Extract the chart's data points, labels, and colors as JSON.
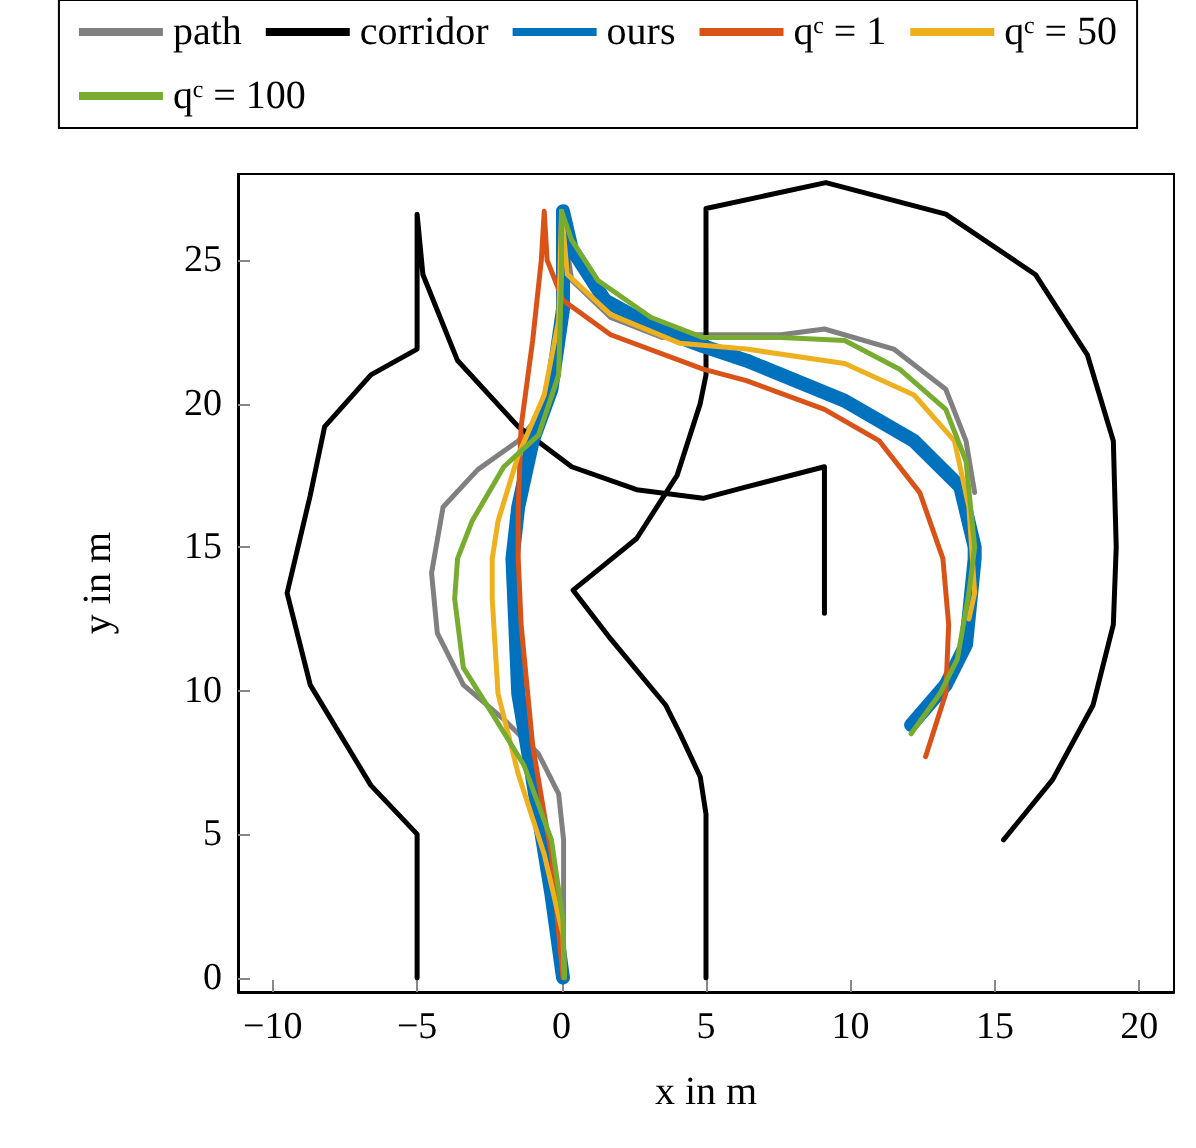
{
  "chart_data": {
    "type": "line",
    "xlabel": "x in m",
    "ylabel": "y in m",
    "xlim": [
      -11.2,
      21.2
    ],
    "ylim": [
      -0.5,
      28
    ],
    "xticks": [
      -10,
      -5,
      0,
      5,
      10,
      15,
      20
    ],
    "yticks": [
      0,
      5,
      10,
      15,
      20,
      25
    ],
    "grid": false,
    "legend": "top",
    "marker": "none",
    "line_style": "solid",
    "series": [
      {
        "name": "path",
        "color": "#808080",
        "x": [
          0.07,
          0.07,
          -0.1,
          -0.8,
          -2,
          -3.4,
          -4.3,
          -4.5,
          -4.1,
          -2.9,
          -1.5,
          -0.35,
          0,
          0,
          0,
          0.35,
          1.7,
          3.5,
          4.1,
          7.6,
          9.1,
          11.5,
          13.3,
          14,
          14.3
        ],
        "values": [
          0,
          4.8,
          6.4,
          7.8,
          9,
          10.2,
          12,
          14.1,
          16.4,
          17.7,
          18.7,
          20.1,
          22.2,
          25.7,
          26.7,
          24.3,
          23,
          22.3,
          22.4,
          22.4,
          22.6,
          21.9,
          20.5,
          18.7,
          16.9
        ]
      },
      {
        "name": "corridor",
        "color": "#000000",
        "x": [
          -5,
          -5,
          -6.6,
          -8.7,
          -9.5,
          -8.7,
          -8.2,
          -6.6,
          -5,
          -5,
          -4.8,
          -3.6,
          -1.5,
          0.35,
          2.6,
          4.9,
          6.4,
          9.1,
          9.1,
          null,
          5,
          5,
          4.8,
          4.1,
          3.6,
          1.7,
          0.4,
          1.5,
          2.6,
          4,
          4.8,
          5,
          5,
          9.15,
          13.3,
          16.4,
          18.2,
          19.1,
          19.2,
          19.1,
          18.4,
          17,
          15.3
        ],
        "values": [
          0,
          5,
          6.7,
          10.2,
          13.4,
          16.8,
          19.2,
          21,
          21.9,
          26.6,
          24.5,
          21.5,
          19.2,
          17.8,
          17,
          16.7,
          17.1,
          17.8,
          12.7,
          null,
          0,
          5.7,
          7,
          8.5,
          9.5,
          11.8,
          13.5,
          14.4,
          15.3,
          17.5,
          20,
          21,
          26.8,
          27.7,
          26.6,
          24.5,
          21.7,
          18.7,
          15,
          12.3,
          9.5,
          6.9,
          4.8
        ]
      },
      {
        "name": "ours",
        "color": "#0072bd",
        "x": [
          0.05,
          -0.35,
          -1,
          -1.5,
          -1.7,
          -1.5,
          -1,
          -0.35,
          0.05,
          0.05,
          0.35,
          1.5,
          3.3,
          4.9,
          6.4,
          9.8,
          12.2,
          13.8,
          14.3,
          14.3,
          14,
          13.3,
          12.1
        ],
        "values": [
          0,
          2.9,
          6.9,
          9.9,
          14.6,
          16.4,
          18.7,
          20.5,
          23.3,
          26.7,
          25.4,
          23.6,
          22.6,
          22,
          21.5,
          20.1,
          18.7,
          17.1,
          15,
          14.6,
          11.6,
          10.2,
          8.8
        ]
      },
      {
        "name": "qᶜ = 1",
        "color": "#d95319",
        "x": [
          0.05,
          -0.35,
          -0.6,
          -1,
          -1.4,
          -1.5,
          -1.5,
          -1.4,
          -1,
          -0.7,
          -0.6,
          -0.5,
          0.05,
          1.7,
          4.9,
          6.4,
          9.1,
          11,
          12.4,
          13.2,
          13.4,
          13.3,
          12.6
        ],
        "values": [
          0,
          4.3,
          5.7,
          8.1,
          12.3,
          14.6,
          16.4,
          19.2,
          22.2,
          25,
          26.7,
          25,
          23.6,
          22.4,
          21.2,
          20.8,
          19.8,
          18.7,
          16.9,
          14.6,
          12.3,
          9.9,
          7.7
        ]
      },
      {
        "name": "qᶜ = 50",
        "color": "#edb120",
        "x": [
          0.1,
          0.05,
          -0.6,
          -1.5,
          -2.2,
          -2.4,
          -2.4,
          -2.2,
          -1.5,
          -0.6,
          -0.1,
          0,
          0.2,
          1.7,
          4.1,
          6.4,
          9.8,
          12.2,
          13.6,
          14.1,
          14.3,
          14.1
        ],
        "values": [
          0,
          1.5,
          4.3,
          7.1,
          9.9,
          13.2,
          14.6,
          15.9,
          18.2,
          20.3,
          22.9,
          26.7,
          24.5,
          23.1,
          22.1,
          21.9,
          21.4,
          20.3,
          18.7,
          16.4,
          13.4,
          12.5
        ]
      },
      {
        "name": "qᶜ = 100",
        "color": "#77ac30",
        "x": [
          0.1,
          0.05,
          -0.35,
          -1.3,
          -2.4,
          -3.4,
          -3.7,
          -3.6,
          -3.1,
          -2,
          -0.8,
          -0.1,
          0,
          0,
          0.35,
          1.25,
          3.1,
          4.9,
          7.6,
          9.8,
          11.7,
          13.3,
          14,
          14.3,
          14.1,
          13.7,
          13.1,
          12.1
        ],
        "values": [
          0,
          2,
          4.8,
          7.4,
          9.2,
          10.8,
          13.2,
          14.6,
          15.9,
          17.8,
          18.9,
          21,
          24.5,
          26.7,
          25.7,
          24.3,
          23,
          22.3,
          22.3,
          22.2,
          21.2,
          19.8,
          18,
          15,
          13.4,
          11.1,
          9.9,
          8.5
        ]
      }
    ]
  }
}
